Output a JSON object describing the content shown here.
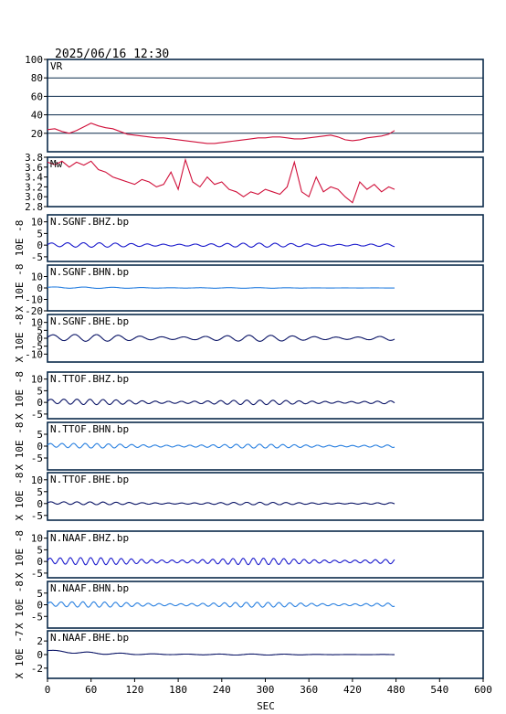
{
  "header": {
    "datetime": "2025/06/16 12:30"
  },
  "chart_data": {
    "type": "line",
    "x": {
      "label": "SEC",
      "range": [
        0,
        600
      ],
      "ticks": [
        0,
        60,
        120,
        180,
        240,
        300,
        360,
        420,
        480,
        540,
        600
      ],
      "tick_labels": [
        "0",
        "60",
        "120",
        "180",
        "240",
        "300",
        "360",
        "420",
        "480",
        "540",
        "600"
      ]
    },
    "panels": [
      {
        "id": "vr",
        "label": "VR",
        "kind": "variance",
        "ylim": [
          0,
          100
        ],
        "gridlines": [
          20,
          40,
          60,
          80
        ],
        "ticks": [
          20,
          40,
          60,
          80,
          100
        ],
        "tick_labels": [
          "20",
          "40",
          "60",
          "80",
          "100"
        ],
        "color": "#d0103a",
        "series": [
          [
            0,
            24
          ],
          [
            10,
            25
          ],
          [
            20,
            22
          ],
          [
            30,
            20
          ],
          [
            40,
            23
          ],
          [
            50,
            27
          ],
          [
            60,
            31
          ],
          [
            70,
            28
          ],
          [
            80,
            26
          ],
          [
            90,
            25
          ],
          [
            100,
            22
          ],
          [
            110,
            19
          ],
          [
            120,
            18
          ],
          [
            130,
            17
          ],
          [
            140,
            16
          ],
          [
            150,
            15
          ],
          [
            160,
            15
          ],
          [
            170,
            14
          ],
          [
            180,
            13
          ],
          [
            190,
            12
          ],
          [
            200,
            11
          ],
          [
            210,
            10
          ],
          [
            220,
            9
          ],
          [
            230,
            9
          ],
          [
            240,
            10
          ],
          [
            250,
            11
          ],
          [
            260,
            12
          ],
          [
            270,
            13
          ],
          [
            280,
            14
          ],
          [
            290,
            15
          ],
          [
            300,
            15
          ],
          [
            310,
            16
          ],
          [
            320,
            16
          ],
          [
            330,
            15
          ],
          [
            340,
            14
          ],
          [
            350,
            14
          ],
          [
            360,
            15
          ],
          [
            370,
            16
          ],
          [
            380,
            17
          ],
          [
            390,
            18
          ],
          [
            400,
            16
          ],
          [
            410,
            13
          ],
          [
            420,
            12
          ],
          [
            430,
            13
          ],
          [
            440,
            15
          ],
          [
            450,
            16
          ],
          [
            460,
            17
          ],
          [
            470,
            19
          ],
          [
            478,
            23
          ]
        ]
      },
      {
        "id": "mw",
        "label": "Mw",
        "kind": "magnitude",
        "ylim": [
          2.8,
          3.8
        ],
        "ticks": [
          2.8,
          3.0,
          3.2,
          3.4,
          3.6,
          3.8
        ],
        "tick_labels": [
          "2.8",
          "3.0",
          "3.2",
          "3.4",
          "3.6",
          "3.8"
        ],
        "color": "#d0103a",
        "series": [
          [
            0,
            3.7
          ],
          [
            10,
            3.65
          ],
          [
            20,
            3.72
          ],
          [
            30,
            3.6
          ],
          [
            40,
            3.7
          ],
          [
            50,
            3.64
          ],
          [
            60,
            3.72
          ],
          [
            70,
            3.55
          ],
          [
            80,
            3.5
          ],
          [
            90,
            3.4
          ],
          [
            100,
            3.35
          ],
          [
            110,
            3.3
          ],
          [
            120,
            3.25
          ],
          [
            130,
            3.35
          ],
          [
            140,
            3.3
          ],
          [
            150,
            3.2
          ],
          [
            160,
            3.25
          ],
          [
            170,
            3.5
          ],
          [
            180,
            3.15
          ],
          [
            190,
            3.75
          ],
          [
            200,
            3.3
          ],
          [
            210,
            3.2
          ],
          [
            220,
            3.4
          ],
          [
            230,
            3.25
          ],
          [
            240,
            3.3
          ],
          [
            250,
            3.15
          ],
          [
            260,
            3.1
          ],
          [
            270,
            3.0
          ],
          [
            280,
            3.1
          ],
          [
            290,
            3.05
          ],
          [
            300,
            3.15
          ],
          [
            310,
            3.1
          ],
          [
            320,
            3.05
          ],
          [
            330,
            3.2
          ],
          [
            340,
            3.7
          ],
          [
            350,
            3.1
          ],
          [
            360,
            3.0
          ],
          [
            370,
            3.4
          ],
          [
            380,
            3.1
          ],
          [
            390,
            3.2
          ],
          [
            400,
            3.15
          ],
          [
            410,
            3.0
          ],
          [
            420,
            2.88
          ],
          [
            430,
            3.3
          ],
          [
            440,
            3.15
          ],
          [
            450,
            3.25
          ],
          [
            460,
            3.1
          ],
          [
            470,
            3.2
          ],
          [
            478,
            3.15
          ]
        ]
      },
      {
        "id": "sgnf-bhz",
        "label": "N.SGNF.BHZ.bp",
        "kind": "trace",
        "ylim": [
          -7,
          13
        ],
        "ticks": [
          -5,
          0,
          5,
          10
        ],
        "tick_labels": [
          "-5",
          "0",
          "5",
          "10"
        ],
        "color": "#1a1acc",
        "wave": {
          "amp": 1.0,
          "period": 22,
          "decay": 0.2,
          "base": 0.2
        }
      },
      {
        "id": "sgnf-bhn",
        "label": "N.SGNF.BHN.bp",
        "kind": "trace",
        "ylim": [
          -20,
          20
        ],
        "ticks": [
          -20,
          -10,
          0,
          10
        ],
        "tick_labels": [
          "-20",
          "-10",
          "0",
          "10"
        ],
        "color": "#2a80e0",
        "wave": {
          "amp": 0.6,
          "period": 40,
          "decay": 0.9,
          "base": 0.5
        }
      },
      {
        "id": "sgnf-bhe",
        "label": "N.SGNF.BHE.bp",
        "kind": "trace",
        "ylim": [
          -15,
          15
        ],
        "ticks": [
          -10,
          -5,
          0,
          5,
          10
        ],
        "tick_labels": [
          "-10",
          "-5",
          "0",
          "5",
          "10"
        ],
        "color": "#0a1466",
        "wave": {
          "amp": 2.2,
          "period": 30,
          "decay": 0.2,
          "base": 0.6
        }
      },
      {
        "id": "ttof-bhz",
        "label": "N.TTOF.BHZ.bp",
        "kind": "trace",
        "ylim": [
          -7,
          13
        ],
        "ticks": [
          -5,
          0,
          5,
          10
        ],
        "tick_labels": [
          "-5",
          "0",
          "5",
          "10"
        ],
        "color": "#0a1466",
        "wave": {
          "amp": 1.2,
          "period": 18,
          "decay": 0.3,
          "base": 0.5
        }
      },
      {
        "id": "ttof-bhn",
        "label": "N.TTOF.BHN.bp",
        "kind": "trace",
        "ylim": [
          -10,
          10
        ],
        "ticks": [
          -5,
          0,
          5
        ],
        "tick_labels": [
          "-5",
          "0",
          "5"
        ],
        "color": "#2a80e0",
        "wave": {
          "amp": 1.0,
          "period": 16,
          "decay": 0.3,
          "base": 0.4
        }
      },
      {
        "id": "ttof-bhe",
        "label": "N.TTOF.BHE.bp",
        "kind": "trace",
        "ylim": [
          -7,
          13
        ],
        "ticks": [
          -5,
          0,
          5,
          10
        ],
        "tick_labels": [
          "-5",
          "0",
          "5",
          "10"
        ],
        "color": "#0a1466",
        "wave": {
          "amp": 0.6,
          "period": 18,
          "decay": 0.2,
          "base": 0.3
        }
      },
      {
        "id": "naaf-bhz",
        "label": "N.NAAF.BHZ.bp",
        "kind": "trace",
        "ylim": [
          -7,
          13
        ],
        "ticks": [
          -5,
          0,
          5,
          10
        ],
        "tick_labels": [
          "-5",
          "0",
          "5",
          "10"
        ],
        "color": "#1a1acc",
        "wave": {
          "amp": 1.6,
          "period": 14,
          "decay": 0.2,
          "base": 0.3
        }
      },
      {
        "id": "naaf-bhn",
        "label": "N.NAAF.BHN.bp",
        "kind": "trace",
        "ylim": [
          -10,
          10
        ],
        "ticks": [
          -5,
          0,
          5
        ],
        "tick_labels": [
          "-5",
          "0",
          "5"
        ],
        "color": "#2a80e0",
        "wave": {
          "amp": 1.2,
          "period": 15,
          "decay": 0.2,
          "base": 0.3
        }
      },
      {
        "id": "naaf-bhe",
        "label": "N.NAAF.BHE.bp",
        "kind": "trace",
        "ylim": [
          -3.5,
          3.5
        ],
        "ticks": [
          -2,
          0,
          2
        ],
        "tick_labels": [
          "-2",
          "0",
          "2"
        ],
        "color": "#0a1466",
        "wave": {
          "amp": 0.15,
          "period": 45,
          "decay": 0.8,
          "base": 0.6
        }
      }
    ],
    "unit_labels": [
      {
        "panel": "sgnf-bhz",
        "text": "10E -8"
      },
      {
        "panel": "sgnf-bhn",
        "text": "X 10E -8"
      },
      {
        "panel": "sgnf-bhe",
        "text": "X 10E -8"
      },
      {
        "panel": "ttof-bhz",
        "text": "X 10E -8"
      },
      {
        "panel": "ttof-bhn",
        "text": "X 10E -8"
      },
      {
        "panel": "ttof-bhe",
        "text": "X 10E -8"
      },
      {
        "panel": "naaf-bhz",
        "text": "X 10E -8"
      },
      {
        "panel": "naaf-bhn",
        "text": "X 10E -8"
      },
      {
        "panel": "naaf-bhe",
        "text": "X 10E -7"
      }
    ],
    "signal_end_sec": 478
  }
}
